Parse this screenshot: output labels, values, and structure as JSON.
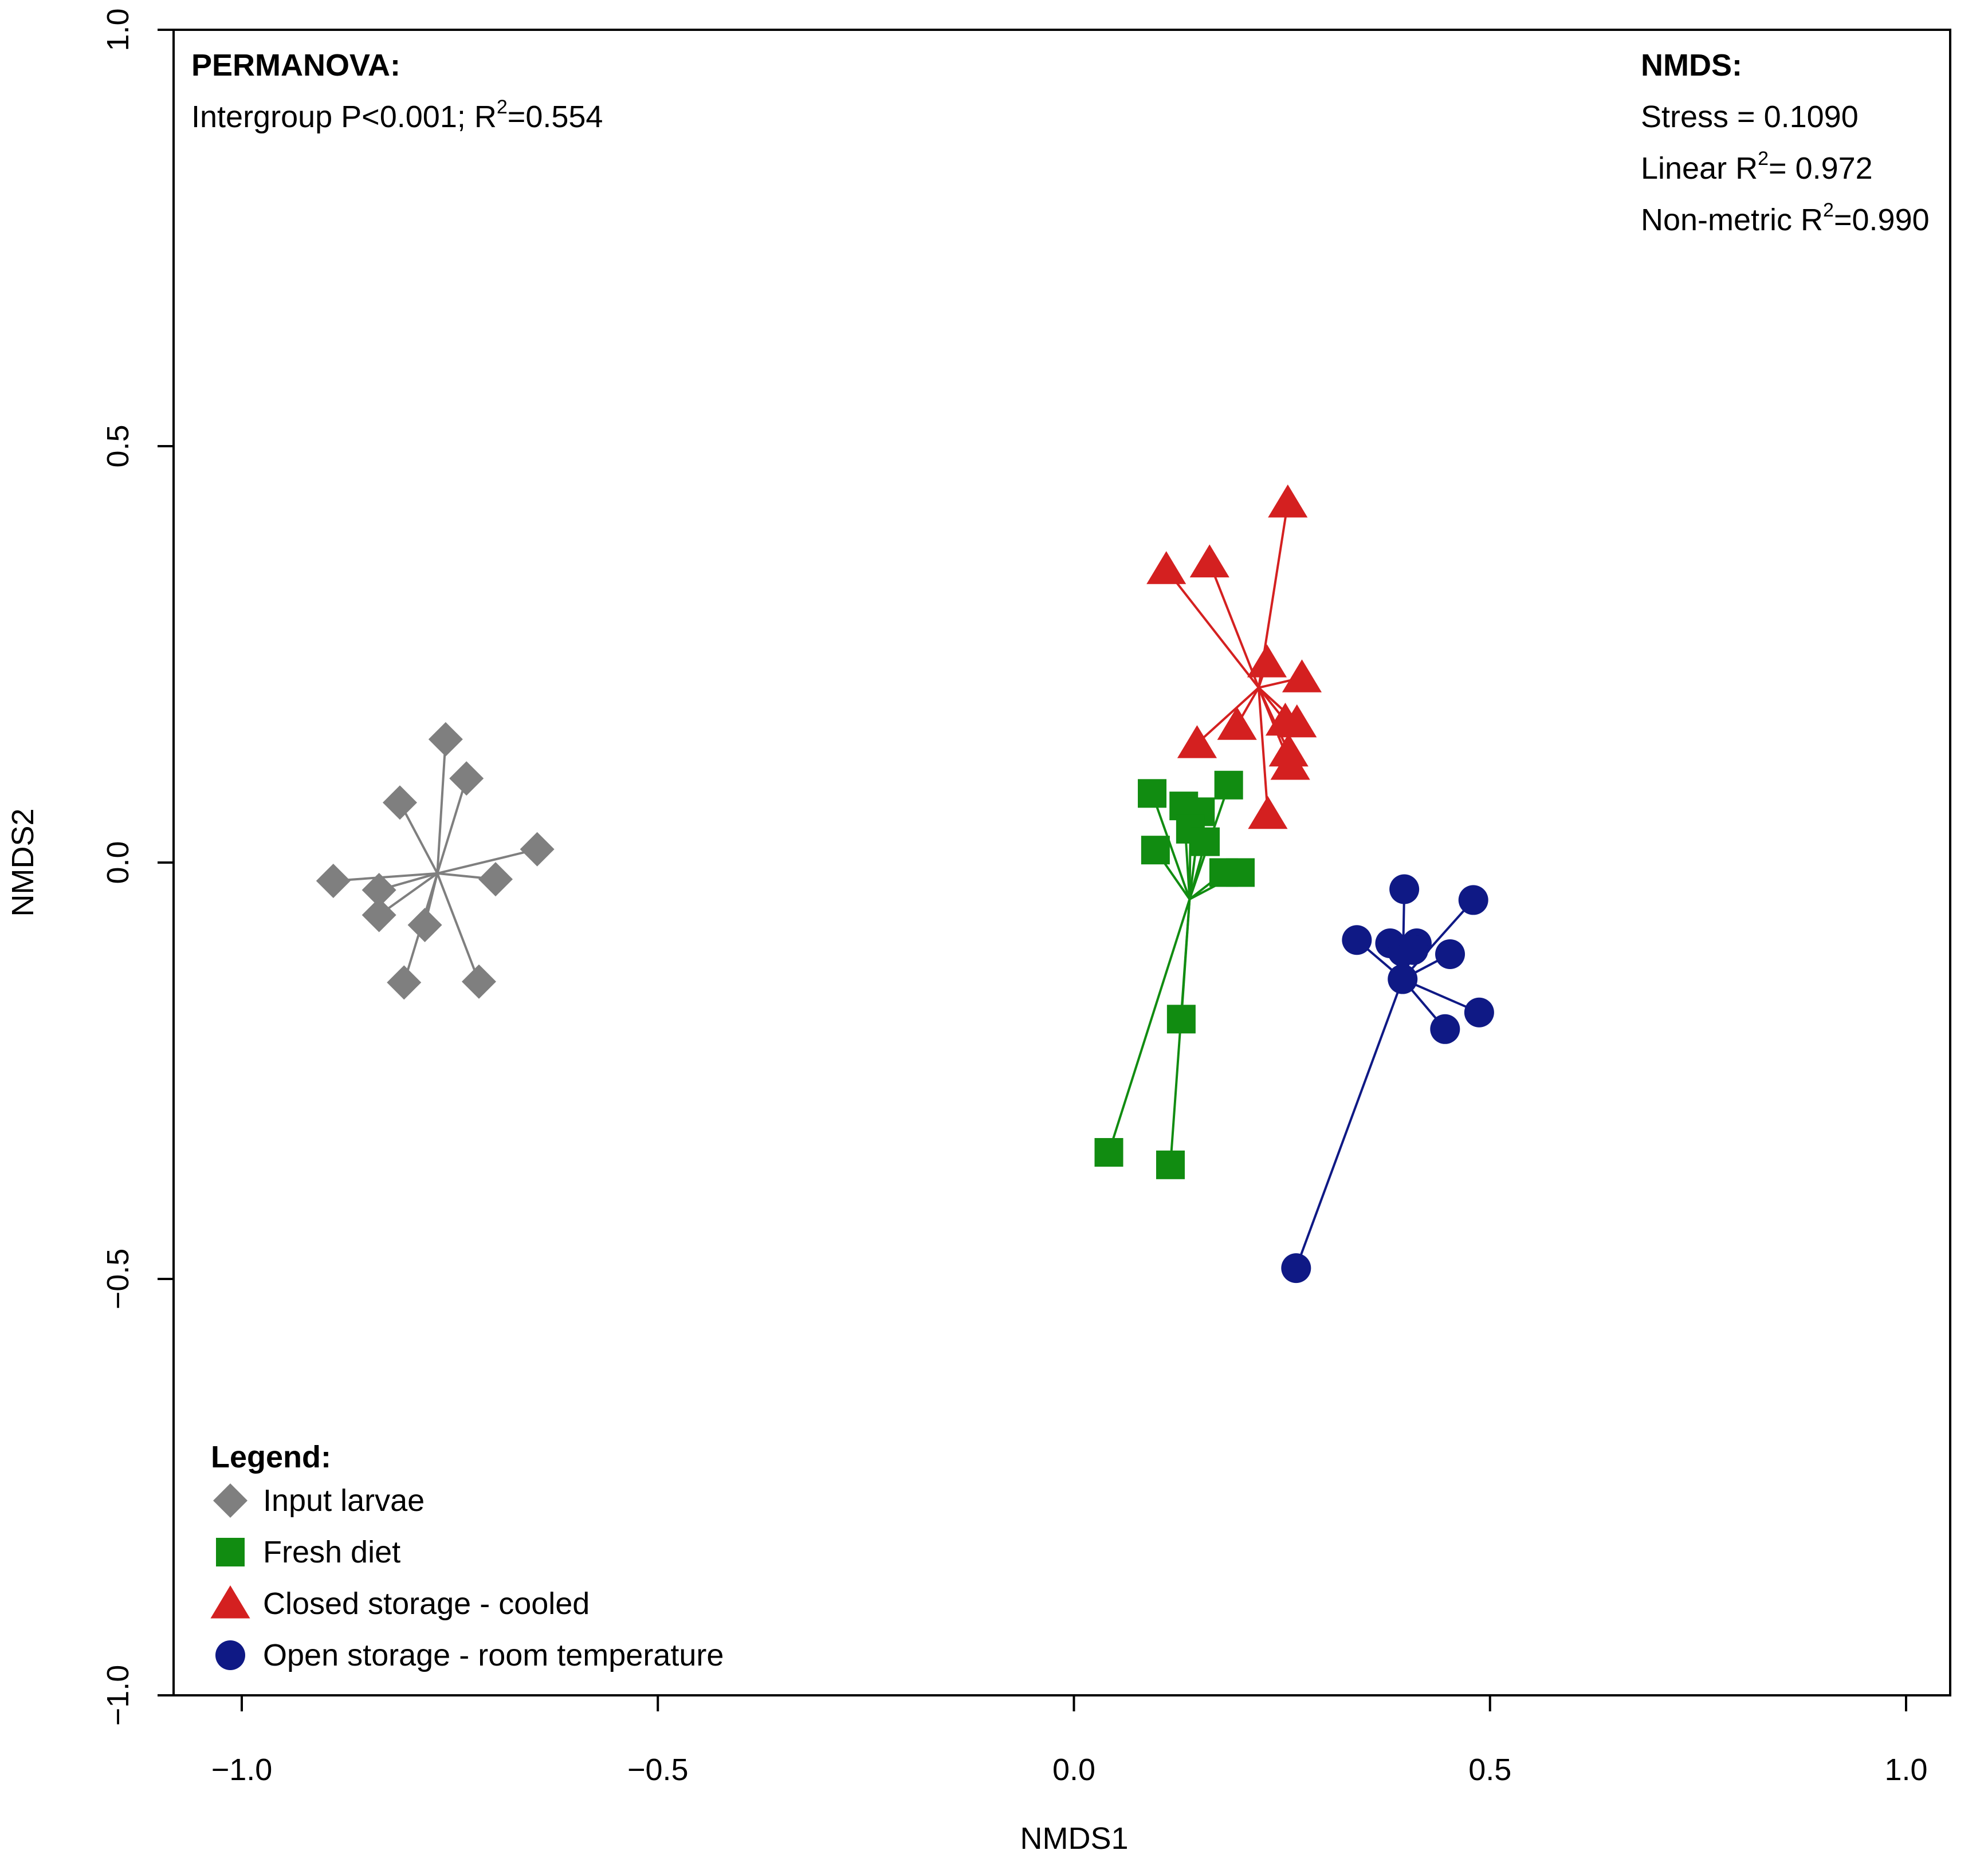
{
  "chart_data": {
    "type": "scatter",
    "title": "",
    "xlabel": "NMDS1",
    "ylabel": "NMDS2",
    "xlim": [
      -1.0,
      1.0
    ],
    "ylim": [
      -1.0,
      1.0
    ],
    "x_ticks": [
      -1.0,
      -0.5,
      0.0,
      0.5,
      1.0
    ],
    "y_ticks": [
      -1.0,
      -0.5,
      0.0,
      0.5,
      1.0
    ],
    "x_tick_labels": [
      "−1.0",
      "−0.5",
      "0.0",
      "0.5",
      "1.0"
    ],
    "y_tick_labels": [
      "−1.0",
      "−0.5",
      "0.0",
      "0.5",
      "1.0"
    ],
    "grid": false,
    "legend_position": "bottom-left",
    "series": [
      {
        "name": "Input larvae",
        "marker": "diamond",
        "color": "#7f7f7f",
        "centroid": [
          -0.765,
          -0.013
        ],
        "points": [
          [
            -0.755,
            0.148
          ],
          [
            -0.73,
            0.101
          ],
          [
            -0.81,
            0.072
          ],
          [
            -0.645,
            0.016
          ],
          [
            -0.89,
            -0.022
          ],
          [
            -0.835,
            -0.033
          ],
          [
            -0.695,
            -0.02
          ],
          [
            -0.835,
            -0.063
          ],
          [
            -0.78,
            -0.075
          ],
          [
            -0.805,
            -0.144
          ],
          [
            -0.715,
            -0.143
          ]
        ]
      },
      {
        "name": "Fresh diet",
        "marker": "square",
        "color": "#118c11",
        "centroid": [
          0.139,
          -0.044
        ],
        "points": [
          [
            0.094,
            0.083
          ],
          [
            0.132,
            0.068
          ],
          [
            0.152,
            0.061
          ],
          [
            0.186,
            0.093
          ],
          [
            0.098,
            0.015
          ],
          [
            0.14,
            0.04
          ],
          [
            0.158,
            0.025
          ],
          [
            0.18,
            -0.012
          ],
          [
            0.2,
            -0.012
          ],
          [
            0.129,
            -0.188
          ],
          [
            0.042,
            -0.348
          ],
          [
            0.116,
            -0.363
          ]
        ]
      },
      {
        "name": "Closed storage - cooled",
        "marker": "triangle",
        "color": "#d42020",
        "centroid": [
          0.222,
          0.21
        ],
        "points": [
          [
            0.257,
            0.432
          ],
          [
            0.111,
            0.352
          ],
          [
            0.163,
            0.36
          ],
          [
            0.232,
            0.24
          ],
          [
            0.274,
            0.222
          ],
          [
            0.196,
            0.165
          ],
          [
            0.254,
            0.17
          ],
          [
            0.268,
            0.168
          ],
          [
            0.148,
            0.143
          ],
          [
            0.258,
            0.133
          ],
          [
            0.26,
            0.117
          ],
          [
            0.233,
            0.058
          ]
        ]
      },
      {
        "name": "Open storage - room temperature",
        "marker": "circle",
        "color": "#0f1985",
        "centroid": [
          0.395,
          -0.14
        ],
        "points": [
          [
            0.397,
            -0.032
          ],
          [
            0.48,
            -0.045
          ],
          [
            0.34,
            -0.093
          ],
          [
            0.38,
            -0.097
          ],
          [
            0.395,
            -0.107
          ],
          [
            0.412,
            -0.097
          ],
          [
            0.408,
            -0.105
          ],
          [
            0.452,
            -0.11
          ],
          [
            0.395,
            -0.14
          ],
          [
            0.487,
            -0.18
          ],
          [
            0.446,
            -0.2
          ],
          [
            0.267,
            -0.487
          ]
        ]
      }
    ],
    "annotations": {
      "permanova": {
        "heading": "PERMANOVA:",
        "line1_prefix": "Intergroup P<0.001; R",
        "line1_sup": "2",
        "line1_suffix": "=0.554"
      },
      "nmds": {
        "heading": "NMDS:",
        "stress": "Stress = 0.1090",
        "linear_prefix": "Linear R",
        "linear_sup": "2",
        "linear_suffix": "= 0.972",
        "nonmetric_prefix": "Non-metric R",
        "nonmetric_sup": "2",
        "nonmetric_suffix": "=0.990"
      },
      "legend_title": "Legend:"
    }
  }
}
